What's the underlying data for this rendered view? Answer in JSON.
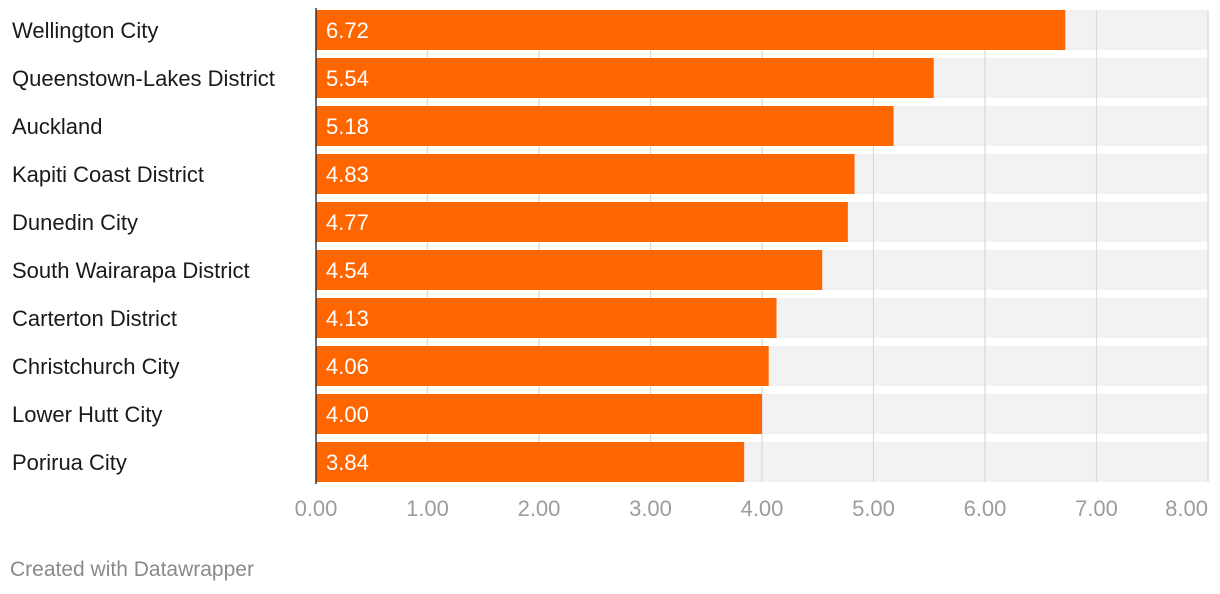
{
  "chart_data": {
    "type": "bar",
    "orientation": "horizontal",
    "categories": [
      "Wellington City",
      "Queenstown-Lakes District",
      "Auckland",
      "Kapiti Coast District",
      "Dunedin City",
      "South Wairarapa District",
      "Carterton District",
      "Christchurch City",
      "Lower Hutt City",
      "Porirua City"
    ],
    "values": [
      6.72,
      5.54,
      5.18,
      4.83,
      4.77,
      4.54,
      4.13,
      4.06,
      4.0,
      3.84
    ],
    "value_labels": [
      "6.72",
      "5.54",
      "5.18",
      "4.83",
      "4.77",
      "4.54",
      "4.13",
      "4.06",
      "4.00",
      "3.84"
    ],
    "xlim": [
      0,
      8
    ],
    "x_ticks": [
      0,
      1,
      2,
      3,
      4,
      5,
      6,
      7,
      8
    ],
    "x_tick_labels": [
      "0.00",
      "1.00",
      "2.00",
      "3.00",
      "4.00",
      "5.00",
      "6.00",
      "7.00",
      "8.00"
    ],
    "grid": true,
    "bar_color": "#ff6600",
    "track_color": "#f2f2f2"
  },
  "footer": {
    "credit": "Created with Datawrapper"
  }
}
